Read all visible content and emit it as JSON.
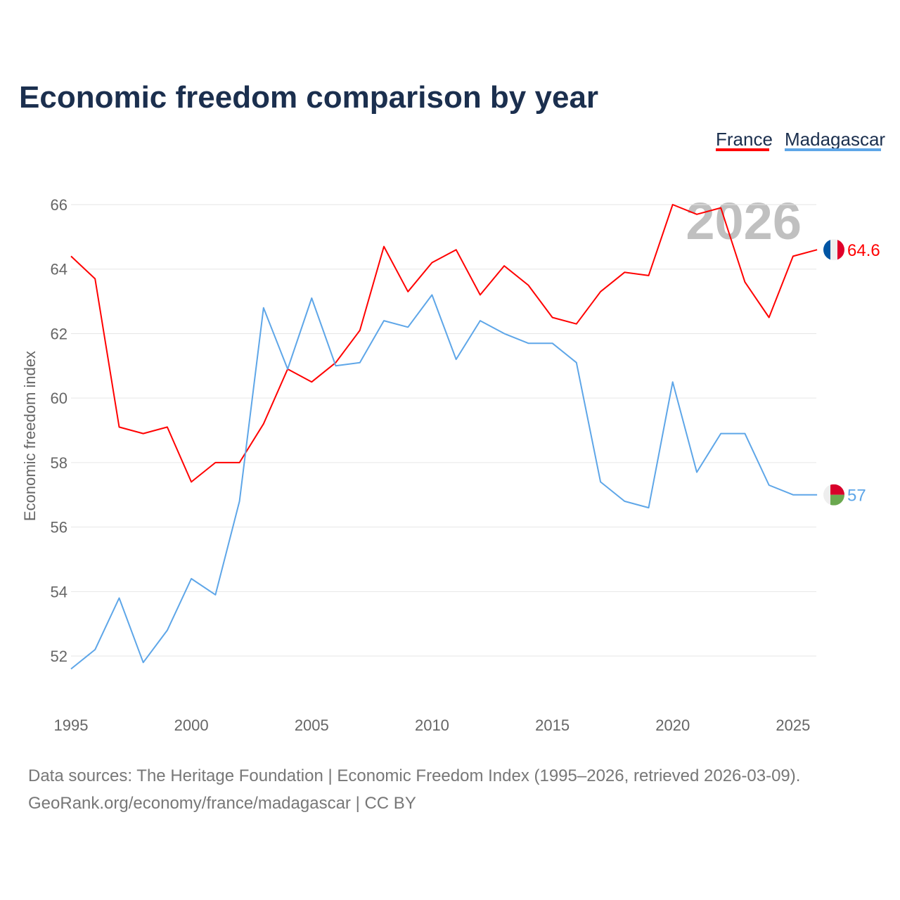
{
  "chart_data": {
    "type": "line",
    "title": "Economic freedom comparison by year",
    "xlabel": "",
    "ylabel": "Economic freedom index",
    "x": [
      1995,
      1996,
      1997,
      1998,
      1999,
      2000,
      2001,
      2002,
      2003,
      2004,
      2005,
      2006,
      2007,
      2008,
      2009,
      2010,
      2011,
      2012,
      2013,
      2014,
      2015,
      2016,
      2017,
      2018,
      2019,
      2020,
      2021,
      2022,
      2023,
      2024,
      2025,
      2026
    ],
    "xlim": [
      1995,
      2026
    ],
    "ylim": [
      51.4,
      66.5
    ],
    "xticks": [
      "1995",
      "2000",
      "2005",
      "2010",
      "2015",
      "2020",
      "2025"
    ],
    "yticks": [
      "52",
      "54",
      "56",
      "58",
      "60",
      "62",
      "64",
      "66"
    ],
    "grid": true,
    "legend_position": "top-right",
    "year_watermark": "2026",
    "series": [
      {
        "name": "France",
        "color": "#ff0000",
        "end_label": "64.6",
        "values": [
          64.4,
          63.7,
          59.1,
          58.9,
          59.1,
          57.4,
          58.0,
          58.0,
          59.2,
          60.9,
          60.5,
          61.1,
          62.1,
          64.7,
          63.3,
          64.2,
          64.6,
          63.2,
          64.1,
          63.5,
          62.5,
          62.3,
          63.3,
          63.9,
          63.8,
          66.0,
          65.7,
          65.9,
          63.6,
          62.5,
          64.4,
          64.6
        ]
      },
      {
        "name": "Madagascar",
        "color": "#5ea6e8",
        "end_label": "57",
        "values": [
          51.6,
          52.2,
          53.8,
          51.8,
          52.8,
          54.4,
          53.9,
          56.8,
          62.8,
          60.9,
          63.1,
          61.0,
          61.1,
          62.4,
          62.2,
          63.2,
          61.2,
          62.4,
          62.0,
          61.7,
          61.7,
          61.1,
          57.4,
          56.8,
          56.6,
          60.5,
          57.7,
          58.9,
          58.9,
          57.3,
          57.0,
          57.0
        ]
      }
    ]
  },
  "footer": {
    "sources": "Data sources: The Heritage Foundation | Economic Freedom Index (1995–2026, retrieved 2026-03-09).",
    "link": "GeoRank.org/economy/france/madagascar | CC BY"
  }
}
